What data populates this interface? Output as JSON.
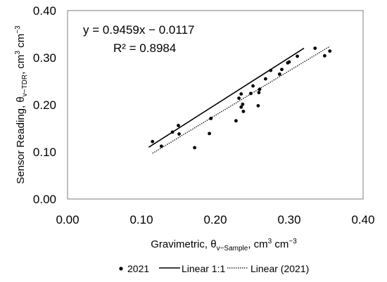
{
  "chart_data": {
    "type": "scatter",
    "xlim": [
      0.0,
      0.4
    ],
    "ylim": [
      0.0,
      0.4
    ],
    "x_ticks": [
      "0.00",
      "0.10",
      "0.20",
      "0.30",
      "0.40"
    ],
    "y_ticks": [
      "0.00",
      "0.10",
      "0.20",
      "0.30",
      "0.40"
    ],
    "xlabel": {
      "prefix": "Gravimetric, θ",
      "sub": "v−Sample",
      "mid": ", cm",
      "sup1": "3",
      "mid2": " cm",
      "sup2": "−3"
    },
    "ylabel": {
      "prefix": "Sensor Reading, θ",
      "sub": "v−TDR",
      "mid": ", cm",
      "sup1": "3",
      "mid2": " cm",
      "sup2": "−3"
    },
    "grid": false,
    "legend_position": "bottom",
    "annotations": {
      "equation": "y = 0.9459x − 0.0117",
      "r_squared": "R² = 0.8984"
    },
    "series": [
      {
        "name": "2021",
        "kind": "scatter",
        "color": "#000000",
        "points": [
          [
            0.115,
            0.122
          ],
          [
            0.127,
            0.112
          ],
          [
            0.142,
            0.142
          ],
          [
            0.15,
            0.156
          ],
          [
            0.151,
            0.138
          ],
          [
            0.172,
            0.109
          ],
          [
            0.192,
            0.139
          ],
          [
            0.194,
            0.171
          ],
          [
            0.228,
            0.166
          ],
          [
            0.232,
            0.214
          ],
          [
            0.235,
            0.223
          ],
          [
            0.235,
            0.195
          ],
          [
            0.237,
            0.201
          ],
          [
            0.238,
            0.186
          ],
          [
            0.248,
            0.224
          ],
          [
            0.251,
            0.24
          ],
          [
            0.258,
            0.198
          ],
          [
            0.259,
            0.226
          ],
          [
            0.26,
            0.233
          ],
          [
            0.268,
            0.255
          ],
          [
            0.275,
            0.273
          ],
          [
            0.287,
            0.265
          ],
          [
            0.29,
            0.275
          ],
          [
            0.298,
            0.289
          ],
          [
            0.3,
            0.291
          ],
          [
            0.311,
            0.303
          ],
          [
            0.335,
            0.32
          ],
          [
            0.348,
            0.304
          ],
          [
            0.355,
            0.314
          ]
        ]
      },
      {
        "name": "Linear 1:1",
        "kind": "line",
        "color": "#000000",
        "x": [
          0.11,
          0.32
        ],
        "y": [
          0.11,
          0.32
        ]
      },
      {
        "name": "Linear (2021)",
        "kind": "trendline",
        "color": "#000000",
        "slope": 0.9459,
        "intercept": -0.0117,
        "x": [
          0.115,
          0.355
        ]
      }
    ]
  }
}
